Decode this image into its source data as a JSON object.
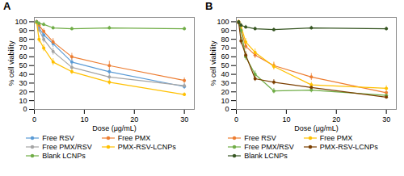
{
  "chart_data": [
    {
      "type": "line",
      "title": "A",
      "xlabel": "Dose (μg/mL)",
      "ylabel": "% cell viability",
      "x": [
        0.468,
        0.938,
        1.875,
        3.75,
        7.5,
        15,
        30
      ],
      "series": [
        {
          "name": "Free RSV",
          "color": "#5B9BD5",
          "values": [
            100,
            93,
            85,
            75,
            54,
            43,
            26
          ],
          "errors": [
            2,
            3,
            4,
            4,
            4,
            3,
            3
          ],
          "marker": "circle"
        },
        {
          "name": "Free PMX",
          "color": "#ED7D31",
          "values": [
            100,
            96,
            89,
            77,
            60,
            50,
            33
          ],
          "errors": [
            2,
            2,
            3,
            4,
            4,
            5,
            3
          ],
          "marker": "circle"
        },
        {
          "name": "Free PMX/RSV",
          "color": "#A5A5A5",
          "values": [
            99,
            91,
            80,
            66,
            48,
            37,
            27
          ],
          "errors": [
            2,
            3,
            4,
            4,
            3,
            3,
            3
          ],
          "marker": "circle"
        },
        {
          "name": "PMX-RSV-LCNPs",
          "color": "#FFC000",
          "values": [
            99,
            80,
            70,
            54,
            43,
            31,
            17
          ],
          "errors": [
            2,
            4,
            4,
            4,
            3,
            3,
            2
          ],
          "marker": "circle"
        },
        {
          "name": "Blank LCNPs",
          "color": "#70AD47",
          "values": [
            100,
            98,
            97,
            93,
            92,
            93,
            92
          ],
          "errors": [
            1,
            2,
            2,
            2,
            2,
            2,
            2
          ],
          "marker": "circle"
        }
      ],
      "xlim": [
        0,
        32
      ],
      "ylim": [
        0,
        105
      ],
      "xticks": [
        0,
        10,
        20,
        30
      ],
      "yticks": [
        0,
        10,
        20,
        30,
        40,
        50,
        60,
        70,
        80,
        90,
        100
      ],
      "grid": false,
      "legend": "bottom"
    },
    {
      "type": "line",
      "title": "B",
      "xlabel": "Dose (μg/mL)",
      "ylabel": "% cell viability",
      "x": [
        0.468,
        0.938,
        1.875,
        3.75,
        7.5,
        15,
        30
      ],
      "series": [
        {
          "name": "Free RSV",
          "color": "#ED7D31",
          "values": [
            100,
            91,
            72,
            62,
            50,
            37,
            19
          ],
          "errors": [
            2,
            3,
            4,
            4,
            4,
            4,
            2
          ],
          "marker": "circle"
        },
        {
          "name": "Free PMX",
          "color": "#FFC000",
          "values": [
            100,
            95,
            77,
            65,
            49,
            28,
            24
          ],
          "errors": [
            2,
            3,
            4,
            4,
            4,
            3,
            3
          ],
          "marker": "circle"
        },
        {
          "name": "Free PMX/RSV",
          "color": "#70AD47",
          "values": [
            99,
            90,
            60,
            40,
            21,
            22,
            16
          ],
          "errors": [
            2,
            3,
            4,
            4,
            3,
            3,
            2
          ],
          "marker": "circle"
        },
        {
          "name": "PMX-RSV-LCNPs",
          "color": "#7B3F00",
          "values": [
            99,
            78,
            62,
            35,
            31,
            25,
            14
          ],
          "errors": [
            2,
            4,
            4,
            3,
            3,
            3,
            2
          ],
          "marker": "circle"
        },
        {
          "name": "Blank LCNPs",
          "color": "#375623",
          "values": [
            100,
            96,
            94,
            92,
            91,
            93,
            92
          ],
          "errors": [
            1,
            2,
            2,
            2,
            2,
            2,
            2
          ],
          "marker": "circle"
        }
      ],
      "xlim": [
        0,
        32
      ],
      "ylim": [
        0,
        105
      ],
      "xticks": [
        0,
        10,
        20,
        30
      ],
      "yticks": [
        0,
        10,
        20,
        30,
        40,
        50,
        60,
        70,
        80,
        90,
        100
      ],
      "grid": false,
      "legend": "bottom"
    }
  ]
}
